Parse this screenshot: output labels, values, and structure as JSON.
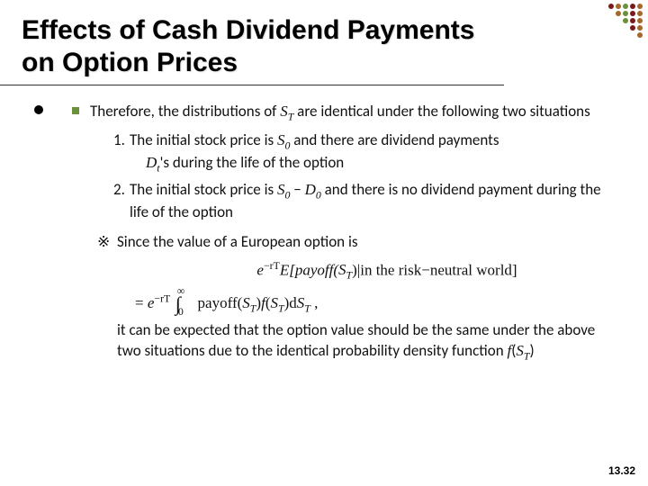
{
  "title": "Effects of Cash Dividend Payments on Option Prices",
  "lead": {
    "pre": "Therefore, the distributions of ",
    "v1": "S",
    "s1": "T",
    "post": " are identical under the following two situations"
  },
  "item1": {
    "num": "1.",
    "pre": "The initial stock price is ",
    "v1": "S",
    "s1": "0",
    "mid": " and there are dividend payments ",
    "v2": "D",
    "s2": "t",
    "post": "'s during the life of the option"
  },
  "item2": {
    "num": "2.",
    "pre": "The initial stock price is ",
    "v1": "S",
    "s1": "0",
    "minus": " − ",
    "v2": "D",
    "s2": "0",
    "post": " and there is no dividend payment during the life of the option"
  },
  "noteMark": "※",
  "noteLine": "Since the value of a European option is",
  "formula1": {
    "a": "e",
    "exp1": "−rT",
    "b": "E[payoff(",
    "v": "S",
    "s": "T",
    "c": ")|in the risk−neutral world]"
  },
  "formula2": {
    "eq": "= ",
    "a": "e",
    "exp1": "−rT",
    "int": " ∫",
    "lo": "0",
    "hi": "∞",
    "sp": " payoff(",
    "v1": "S",
    "s1": "T",
    "m": ")",
    "f": "f",
    "p1": "(",
    "v2": "S",
    "s2": "T",
    "p2": ")d",
    "v3": "S",
    "s3": "T",
    "end": " ,"
  },
  "tail": {
    "l1": "it can be expected that the option value should be the same under the above two situations due to the identical probability density function ",
    "f": "f",
    "p1": "(",
    "v": "S",
    "s": "T",
    "p2": ")"
  },
  "pageNum": "13.32",
  "deco": {
    "colors": [
      "#7b1a1a",
      "#a5682a",
      "#6b8f3a"
    ],
    "rows": [
      5,
      4,
      3,
      2,
      1
    ]
  }
}
